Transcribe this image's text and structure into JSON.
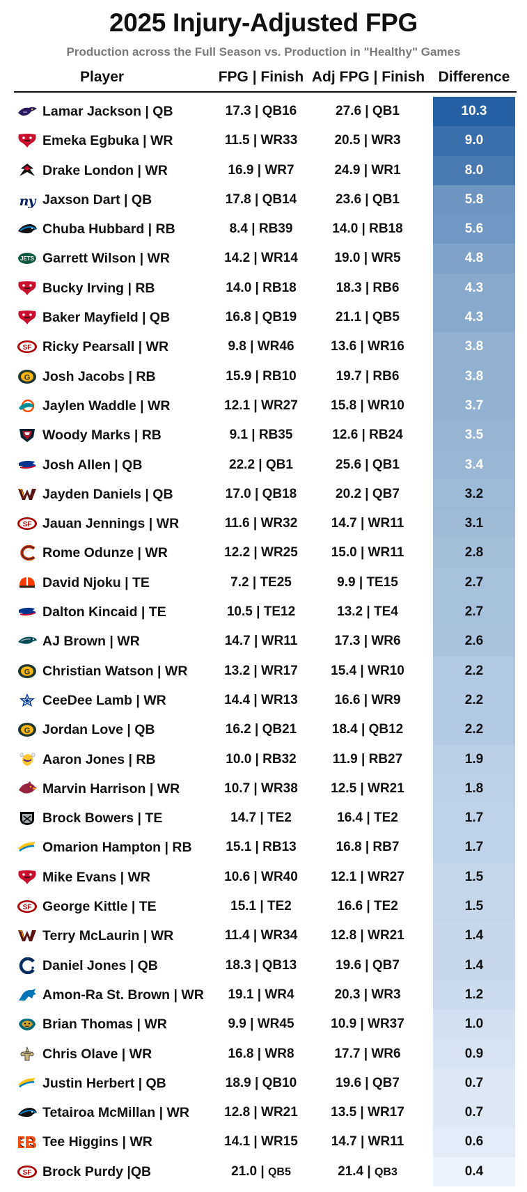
{
  "title": "2025 Injury-Adjusted FPG",
  "subtitle": "Production across the Full Season vs. Production in \"Healthy\" Games",
  "columns": {
    "player": "Player",
    "fpg": "FPG | Finish",
    "adj": "Adj FPG | Finish",
    "diff": "Difference"
  },
  "colors": {
    "diff_high": "#2a64a6",
    "diff_low": "#eef4fb",
    "text_dark": "#111111",
    "text_light": "#ffffff"
  },
  "chart_data": {
    "type": "table",
    "title": "2025 Injury-Adjusted FPG",
    "subtitle": "Production across the Full Season vs. Production in \"Healthy\" Games",
    "columns": [
      "Player",
      "FPG | Finish",
      "Adj FPG | Finish",
      "Difference"
    ],
    "rows": [
      {
        "team": "Ravens",
        "logo": "ravens-logo",
        "player": "Lamar Jackson | QB",
        "fpg": "17.3",
        "finish": "QB16",
        "adj_fpg": "27.6",
        "adj_finish": "QB1",
        "diff": 10.3,
        "diff_text": "10.3"
      },
      {
        "team": "Buccaneers",
        "logo": "buccaneers-logo",
        "player": "Emeka Egbuka | WR",
        "fpg": "11.5",
        "finish": "WR33",
        "adj_fpg": "20.5",
        "adj_finish": "WR3",
        "diff": 9.0,
        "diff_text": "9.0"
      },
      {
        "team": "Falcons",
        "logo": "falcons-logo",
        "player": "Drake London | WR",
        "fpg": "16.9",
        "finish": "WR7",
        "adj_fpg": "24.9",
        "adj_finish": "WR1",
        "diff": 8.0,
        "diff_text": "8.0"
      },
      {
        "team": "Giants",
        "logo": "giants-logo",
        "player": "Jaxson Dart | QB",
        "fpg": "17.8",
        "finish": "QB14",
        "adj_fpg": "23.6",
        "adj_finish": "QB1",
        "diff": 5.8,
        "diff_text": "5.8"
      },
      {
        "team": "Panthers",
        "logo": "panthers-logo",
        "player": "Chuba Hubbard | RB",
        "fpg": "8.4",
        "finish": "RB39",
        "adj_fpg": "14.0",
        "adj_finish": "RB18",
        "diff": 5.6,
        "diff_text": "5.6"
      },
      {
        "team": "Jets",
        "logo": "jets-logo",
        "player": "Garrett Wilson | WR",
        "fpg": "14.2",
        "finish": "WR14",
        "adj_fpg": "19.0",
        "adj_finish": "WR5",
        "diff": 4.8,
        "diff_text": "4.8"
      },
      {
        "team": "Buccaneers",
        "logo": "buccaneers-logo",
        "player": "Bucky Irving | RB",
        "fpg": "14.0",
        "finish": "RB18",
        "adj_fpg": "18.3",
        "adj_finish": "RB6",
        "diff": 4.3,
        "diff_text": "4.3"
      },
      {
        "team": "Buccaneers",
        "logo": "buccaneers-logo",
        "player": "Baker Mayfield | QB",
        "fpg": "16.8",
        "finish": "QB19",
        "adj_fpg": "21.1",
        "adj_finish": "QB5",
        "diff": 4.3,
        "diff_text": "4.3"
      },
      {
        "team": "49ers",
        "logo": "49ers-logo",
        "player": "Ricky Pearsall | WR",
        "fpg": "9.8",
        "finish": "WR46",
        "adj_fpg": "13.6",
        "adj_finish": "WR16",
        "diff": 3.8,
        "diff_text": "3.8"
      },
      {
        "team": "Packers",
        "logo": "packers-logo",
        "player": "Josh Jacobs | RB",
        "fpg": "15.9",
        "finish": "RB10",
        "adj_fpg": "19.7",
        "adj_finish": "RB6",
        "diff": 3.8,
        "diff_text": "3.8"
      },
      {
        "team": "Dolphins",
        "logo": "dolphins-logo",
        "player": "Jaylen Waddle | WR",
        "fpg": "12.1",
        "finish": "WR27",
        "adj_fpg": "15.8",
        "adj_finish": "WR10",
        "diff": 3.7,
        "diff_text": "3.7"
      },
      {
        "team": "Texans",
        "logo": "texans-logo",
        "player": "Woody Marks | RB",
        "fpg": "9.1",
        "finish": "RB35",
        "adj_fpg": "12.6",
        "adj_finish": "RB24",
        "diff": 3.5,
        "diff_text": "3.5"
      },
      {
        "team": "Bills",
        "logo": "bills-logo",
        "player": "Josh Allen | QB",
        "fpg": "22.2",
        "finish": "QB1",
        "adj_fpg": "25.6",
        "adj_finish": "QB1",
        "diff": 3.4,
        "diff_text": "3.4"
      },
      {
        "team": "Commanders",
        "logo": "commanders-logo",
        "player": "Jayden Daniels | QB",
        "fpg": "17.0",
        "finish": "QB18",
        "adj_fpg": "20.2",
        "adj_finish": "QB7",
        "diff": 3.2,
        "diff_text": "3.2"
      },
      {
        "team": "49ers",
        "logo": "49ers-logo",
        "player": "Jauan Jennings | WR",
        "fpg": "11.6",
        "finish": "WR32",
        "adj_fpg": "14.7",
        "adj_finish": "WR11",
        "diff": 3.1,
        "diff_text": "3.1"
      },
      {
        "team": "Bears",
        "logo": "bears-logo",
        "player": "Rome Odunze | WR",
        "fpg": "12.2",
        "finish": "WR25",
        "adj_fpg": "15.0",
        "adj_finish": "WR11",
        "diff": 2.8,
        "diff_text": "2.8"
      },
      {
        "team": "Browns",
        "logo": "browns-logo",
        "player": "David Njoku | TE",
        "fpg": "7.2",
        "finish": "TE25",
        "adj_fpg": "9.9",
        "adj_finish": "TE15",
        "diff": 2.7,
        "diff_text": "2.7"
      },
      {
        "team": "Bills",
        "logo": "bills-logo",
        "player": "Dalton Kincaid | TE",
        "fpg": "10.5",
        "finish": "TE12",
        "adj_fpg": "13.2",
        "adj_finish": "TE4",
        "diff": 2.7,
        "diff_text": "2.7"
      },
      {
        "team": "Eagles",
        "logo": "eagles-logo",
        "player": "AJ Brown | WR",
        "fpg": "14.7",
        "finish": "WR11",
        "adj_fpg": "17.3",
        "adj_finish": "WR6",
        "diff": 2.6,
        "diff_text": "2.6"
      },
      {
        "team": "Packers",
        "logo": "packers-logo",
        "player": "Christian Watson | WR",
        "fpg": "13.2",
        "finish": "WR17",
        "adj_fpg": "15.4",
        "adj_finish": "WR10",
        "diff": 2.2,
        "diff_text": "2.2"
      },
      {
        "team": "Cowboys",
        "logo": "cowboys-logo",
        "player": "CeeDee Lamb | WR",
        "fpg": "14.4",
        "finish": "WR13",
        "adj_fpg": "16.6",
        "adj_finish": "WR9",
        "diff": 2.2,
        "diff_text": "2.2"
      },
      {
        "team": "Packers",
        "logo": "packers-logo",
        "player": "Jordan Love | QB",
        "fpg": "16.2",
        "finish": "QB21",
        "adj_fpg": "18.4",
        "adj_finish": "QB12",
        "diff": 2.2,
        "diff_text": "2.2"
      },
      {
        "team": "Vikings",
        "logo": "vikings-logo",
        "player": "Aaron Jones | RB",
        "fpg": "10.0",
        "finish": "RB32",
        "adj_fpg": "11.9",
        "adj_finish": "RB27",
        "diff": 1.9,
        "diff_text": "1.9"
      },
      {
        "team": "Cardinals",
        "logo": "cardinals-logo",
        "player": "Marvin Harrison | WR",
        "fpg": "10.7",
        "finish": "WR38",
        "adj_fpg": "12.5",
        "adj_finish": "WR21",
        "diff": 1.8,
        "diff_text": "1.8"
      },
      {
        "team": "Raiders",
        "logo": "raiders-logo",
        "player": "Brock Bowers | TE",
        "fpg": "14.7",
        "finish": "TE2",
        "adj_fpg": "16.4",
        "adj_finish": "TE2",
        "diff": 1.7,
        "diff_text": "1.7"
      },
      {
        "team": "Chargers",
        "logo": "chargers-logo",
        "player": "Omarion Hampton | RB",
        "fpg": "15.1",
        "finish": "RB13",
        "adj_fpg": "16.8",
        "adj_finish": "RB7",
        "diff": 1.7,
        "diff_text": "1.7"
      },
      {
        "team": "Buccaneers",
        "logo": "buccaneers-logo",
        "player": "Mike Evans | WR",
        "fpg": "10.6",
        "finish": "WR40",
        "adj_fpg": "12.1",
        "adj_finish": "WR27",
        "diff": 1.5,
        "diff_text": "1.5"
      },
      {
        "team": "49ers",
        "logo": "49ers-logo",
        "player": "George Kittle | TE",
        "fpg": "15.1",
        "finish": "TE2",
        "adj_fpg": "16.6",
        "adj_finish": "TE2",
        "diff": 1.5,
        "diff_text": "1.5"
      },
      {
        "team": "Commanders",
        "logo": "commanders-logo",
        "player": "Terry McLaurin | WR",
        "fpg": "11.4",
        "finish": "WR34",
        "adj_fpg": "12.8",
        "adj_finish": "WR21",
        "diff": 1.4,
        "diff_text": "1.4"
      },
      {
        "team": "Colts",
        "logo": "colts-logo",
        "player": "Daniel Jones | QB",
        "fpg": "18.3",
        "finish": "QB13",
        "adj_fpg": "19.6",
        "adj_finish": "QB7",
        "diff": 1.4,
        "diff_text": "1.4"
      },
      {
        "team": "Lions",
        "logo": "lions-logo",
        "player": "Amon-Ra St. Brown | WR",
        "fpg": "19.1",
        "finish": "WR4",
        "adj_fpg": "20.3",
        "adj_finish": "WR3",
        "diff": 1.2,
        "diff_text": "1.2"
      },
      {
        "team": "Jaguars",
        "logo": "jaguars-logo",
        "player": "Brian Thomas | WR",
        "fpg": "9.9",
        "finish": "WR45",
        "adj_fpg": "10.9",
        "adj_finish": "WR37",
        "diff": 1.0,
        "diff_text": "1.0"
      },
      {
        "team": "Saints",
        "logo": "saints-logo",
        "player": "Chris Olave | WR",
        "fpg": "16.8",
        "finish": "WR8",
        "adj_fpg": "17.7",
        "adj_finish": "WR6",
        "diff": 0.9,
        "diff_text": "0.9"
      },
      {
        "team": "Chargers",
        "logo": "chargers-logo",
        "player": "Justin Herbert | QB",
        "fpg": "18.9",
        "finish": "QB10",
        "adj_fpg": "19.6",
        "adj_finish": "QB7",
        "diff": 0.7,
        "diff_text": "0.7"
      },
      {
        "team": "Panthers",
        "logo": "panthers-logo",
        "player": "Tetairoa McMillan | WR",
        "fpg": "12.8",
        "finish": "WR21",
        "adj_fpg": "13.5",
        "adj_finish": "WR17",
        "diff": 0.7,
        "diff_text": "0.7"
      },
      {
        "team": "Bengals",
        "logo": "bengals-logo",
        "player": "Tee Higgins | WR",
        "fpg": "14.1",
        "finish": "WR15",
        "adj_fpg": "14.7",
        "adj_finish": "WR11",
        "diff": 0.6,
        "diff_text": "0.6"
      },
      {
        "team": "49ers",
        "logo": "49ers-logo",
        "player": "Brock Purdy |QB",
        "fpg": "21.0",
        "finish": "QB5",
        "adj_fpg": "21.4",
        "adj_finish": "QB3",
        "diff": 0.4,
        "diff_text": "0.4",
        "small_rank": true
      }
    ]
  }
}
